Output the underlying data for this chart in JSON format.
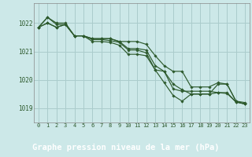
{
  "background_color": "#cce8e8",
  "plot_bg_color": "#cce8e8",
  "footer_bg_color": "#2d6b2d",
  "grid_color": "#aacccc",
  "line_color": "#2d5a2d",
  "marker_color": "#2d5a2d",
  "title": "Graphe pression niveau de la mer (hPa)",
  "title_color": "#ffffff",
  "title_fontsize": 7.5,
  "xlim": [
    -0.5,
    23.5
  ],
  "ylim": [
    1018.5,
    1022.7
  ],
  "yticks": [
    1019,
    1020,
    1021,
    1022
  ],
  "xticks": [
    0,
    1,
    2,
    3,
    4,
    5,
    6,
    7,
    8,
    9,
    10,
    11,
    12,
    13,
    14,
    15,
    16,
    17,
    18,
    19,
    20,
    21,
    22,
    23
  ],
  "lines": [
    [
      1021.85,
      1022.2,
      1021.95,
      1021.95,
      1021.55,
      1021.55,
      1021.45,
      1021.45,
      1021.45,
      1021.35,
      1021.1,
      1021.1,
      1021.05,
      1020.5,
      1020.3,
      1019.85,
      1019.65,
      1019.5,
      1019.5,
      1019.5,
      1019.85,
      1019.85,
      1019.25,
      1019.2
    ],
    [
      1021.85,
      1022.2,
      1022.0,
      1022.0,
      1021.55,
      1021.55,
      1021.45,
      1021.45,
      1021.45,
      1021.35,
      1021.35,
      1021.35,
      1021.25,
      1020.85,
      1020.5,
      1020.3,
      1020.3,
      1019.75,
      1019.75,
      1019.75,
      1019.9,
      1019.85,
      1019.25,
      1019.15
    ],
    [
      1021.85,
      1022.0,
      1021.85,
      1021.95,
      1021.55,
      1021.55,
      1021.42,
      1021.42,
      1021.38,
      1021.32,
      1021.05,
      1021.05,
      1020.95,
      1020.35,
      1020.3,
      1019.68,
      1019.6,
      1019.6,
      1019.6,
      1019.6,
      1019.55,
      1019.55,
      1019.22,
      1019.15
    ],
    [
      1021.85,
      1022.0,
      1021.85,
      1021.95,
      1021.55,
      1021.55,
      1021.35,
      1021.35,
      1021.32,
      1021.22,
      1020.9,
      1020.9,
      1020.85,
      1020.35,
      1019.9,
      1019.45,
      1019.25,
      1019.5,
      1019.5,
      1019.5,
      1019.55,
      1019.52,
      1019.22,
      1019.15
    ]
  ]
}
